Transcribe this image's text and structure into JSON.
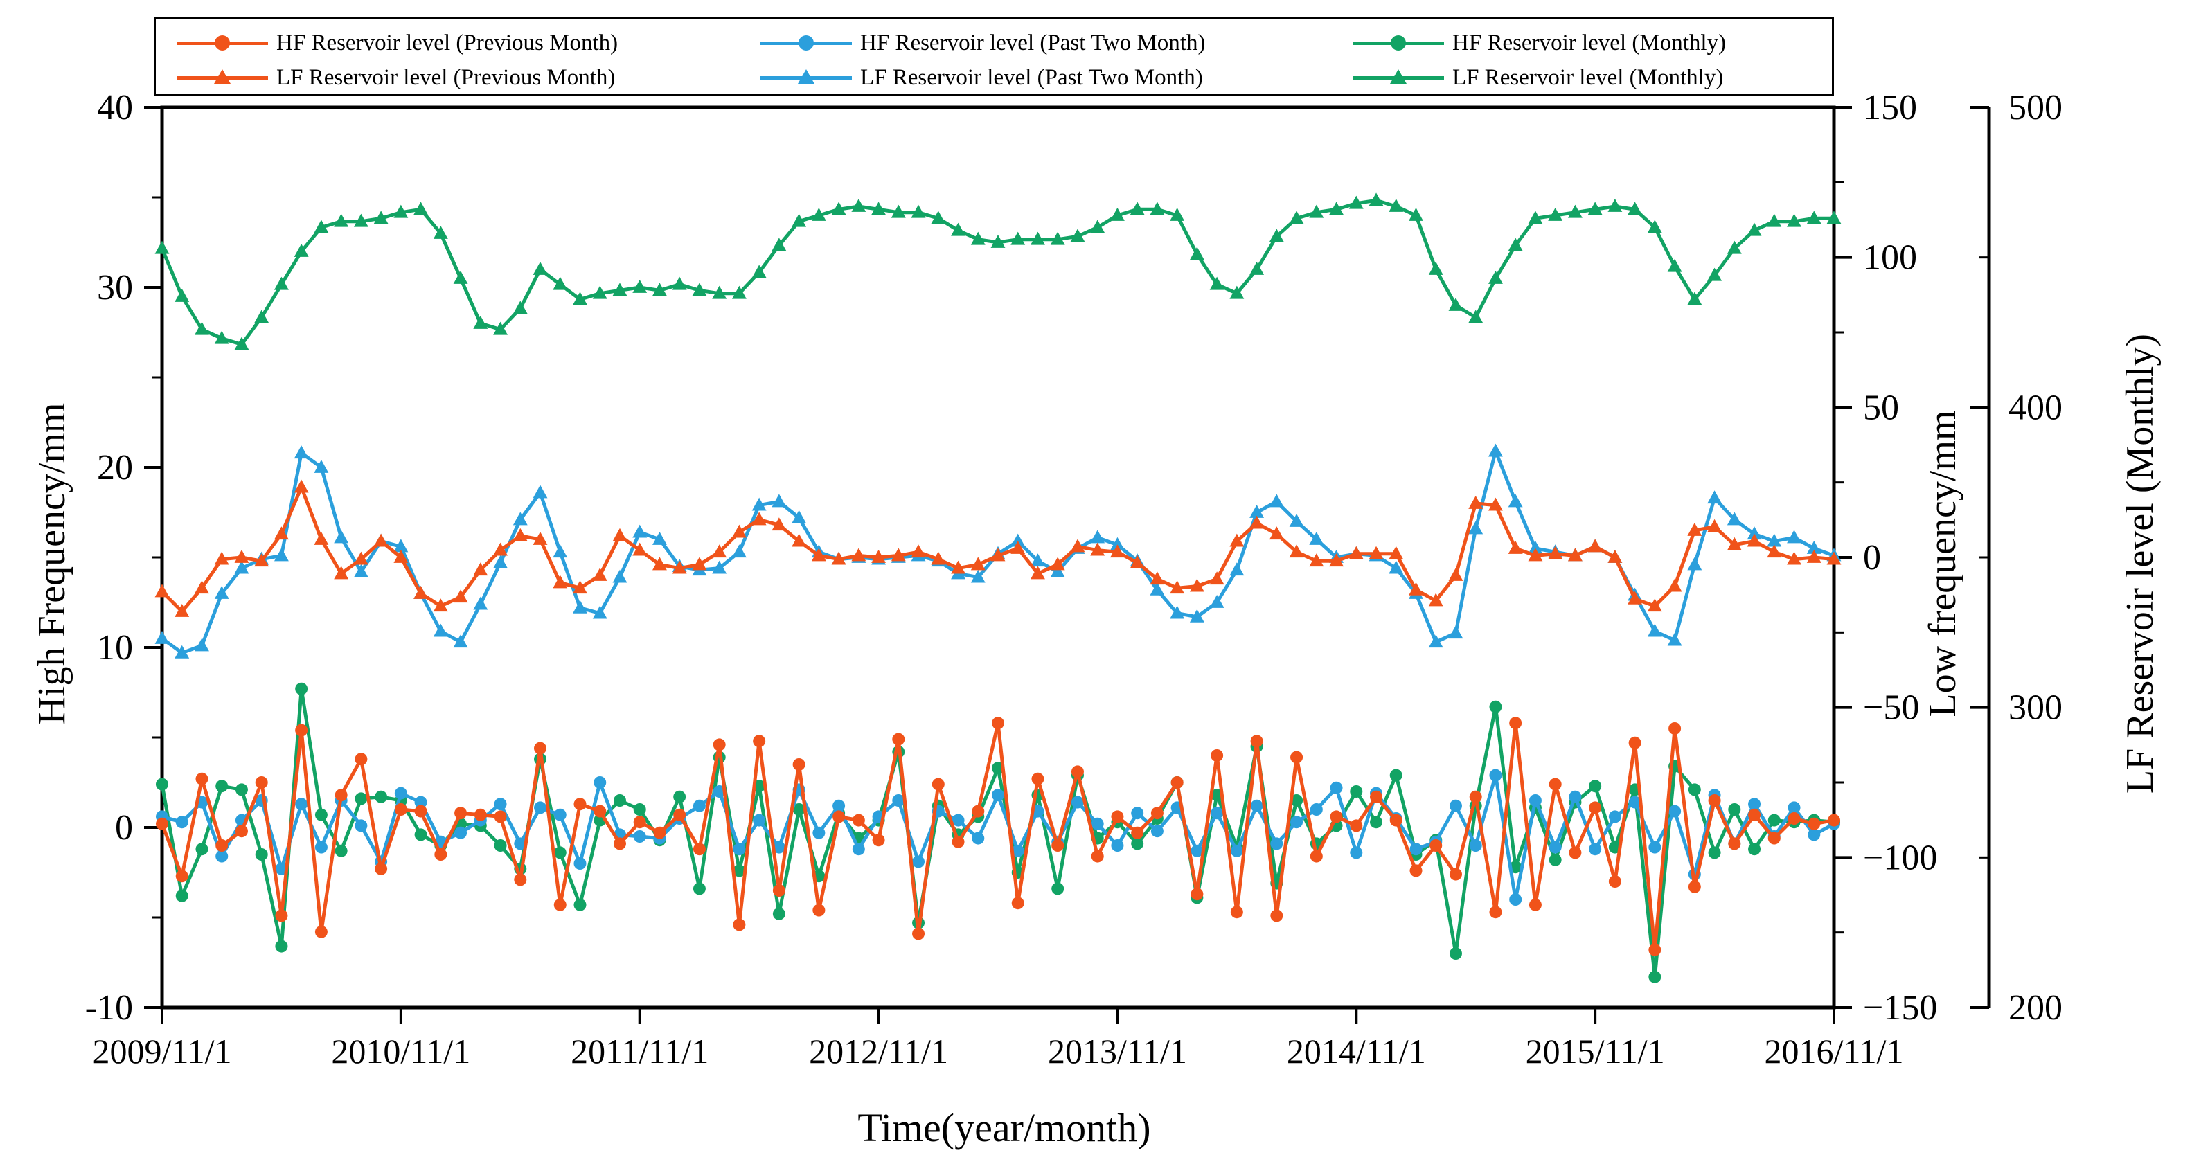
{
  "figure": {
    "kind": "multi-axis seasonal time-series chart",
    "background": "#ffffff",
    "frame_color": "#000000"
  },
  "colors": {
    "orange": "#F0531A",
    "blue": "#2B9FDC",
    "green": "#12A364",
    "axis": "#000000"
  },
  "legend": {
    "items": [
      {
        "label": "HF Reservoir level (Previous Month)",
        "color": "#F0531A",
        "marker": "circle"
      },
      {
        "label": "HF Reservoir level (Past Two Month)",
        "color": "#2B9FDC",
        "marker": "circle"
      },
      {
        "label": "HF Reservoir level (Monthly)",
        "color": "#12A364",
        "marker": "circle"
      },
      {
        "label": "LF Reservoir level (Previous Month)",
        "color": "#F0531A",
        "marker": "triangle"
      },
      {
        "label": "LF Reservoir level (Past Two Month)",
        "color": "#2B9FDC",
        "marker": "triangle"
      },
      {
        "label": "LF Reservoir level (Monthly)",
        "color": "#12A364",
        "marker": "triangle"
      }
    ]
  },
  "axes": {
    "x": {
      "title": "Time(year/month)",
      "ticks": [
        "2009/11/1",
        "2010/11/1",
        "2011/11/1",
        "2012/11/1",
        "2013/11/1",
        "2014/11/1",
        "2015/11/1",
        "2016/11/1"
      ]
    },
    "left": {
      "title": "High Frequency/mm",
      "range": [
        -10,
        40
      ],
      "ticks": [
        40,
        30,
        20,
        10,
        0,
        -10
      ],
      "minor_step": 5
    },
    "right1": {
      "title": "Low frequency/mm",
      "range": [
        -150,
        150
      ],
      "ticks": [
        150,
        100,
        50,
        0,
        -50,
        -100,
        -150
      ],
      "minor_step": 25
    },
    "right2": {
      "title": "LF Reservoir level (Monthly)",
      "range": [
        200,
        500
      ],
      "ticks": [
        500,
        400,
        300,
        200
      ],
      "minor_step": 50
    }
  },
  "chart_data": {
    "type": "line",
    "title": "",
    "xlabel": "Time(year/month)",
    "x_months": [
      "2009/11",
      "2009/12",
      "2010/1",
      "2010/2",
      "2010/3",
      "2010/4",
      "2010/5",
      "2010/6",
      "2010/7",
      "2010/8",
      "2010/9",
      "2010/10",
      "2010/11",
      "2010/12",
      "2011/1",
      "2011/2",
      "2011/3",
      "2011/4",
      "2011/5",
      "2011/6",
      "2011/7",
      "2011/8",
      "2011/9",
      "2011/10",
      "2011/11",
      "2011/12",
      "2012/1",
      "2012/2",
      "2012/3",
      "2012/4",
      "2012/5",
      "2012/6",
      "2012/7",
      "2012/8",
      "2012/9",
      "2012/10",
      "2012/11",
      "2012/12",
      "2013/1",
      "2013/2",
      "2013/3",
      "2013/4",
      "2013/5",
      "2013/6",
      "2013/7",
      "2013/8",
      "2013/9",
      "2013/10",
      "2013/11",
      "2013/12",
      "2014/1",
      "2014/2",
      "2014/3",
      "2014/4",
      "2014/5",
      "2014/6",
      "2014/7",
      "2014/8",
      "2014/9",
      "2014/10",
      "2014/11",
      "2014/12",
      "2015/1",
      "2015/2",
      "2015/3",
      "2015/4",
      "2015/5",
      "2015/6",
      "2015/7",
      "2015/8",
      "2015/9",
      "2015/10",
      "2015/11",
      "2015/12",
      "2016/1",
      "2016/2",
      "2016/3",
      "2016/4",
      "2016/5",
      "2016/6",
      "2016/7",
      "2016/8",
      "2016/9",
      "2016/10",
      "2016/11"
    ],
    "series": [
      {
        "id": "lf_monthly",
        "name": "LF Reservoir level (Monthly)",
        "axis": "right2",
        "color": "#12A364",
        "marker": "triangle",
        "values": [
          453,
          437,
          426,
          423,
          421,
          430,
          441,
          452,
          460,
          462,
          462,
          463,
          465,
          466,
          458,
          443,
          428,
          426,
          433,
          446,
          441,
          436,
          438,
          439,
          440,
          439,
          441,
          439,
          438,
          438,
          445,
          454,
          462,
          464,
          466,
          467,
          466,
          465,
          465,
          463,
          459,
          456,
          455,
          456,
          456,
          456,
          457,
          460,
          464,
          466,
          466,
          464,
          451,
          441,
          438,
          446,
          457,
          463,
          465,
          466,
          468,
          469,
          467,
          464,
          446,
          434,
          430,
          443,
          454,
          463,
          464,
          465,
          466,
          467,
          466,
          460,
          447,
          436,
          444,
          453,
          459,
          462,
          462,
          463,
          463
        ]
      },
      {
        "id": "lf_past2",
        "name": "LF Reservoir level (Past Two Month)",
        "axis": "right1",
        "color": "#2B9FDC",
        "marker": "triangle",
        "values": [
          -27,
          -31.8,
          -29.4,
          -12,
          -3.6,
          -0.6,
          0.6,
          34.8,
          30,
          6.6,
          -4.8,
          5.4,
          3.6,
          -12,
          -24.6,
          -28.2,
          -15.6,
          -1.8,
          12.6,
          21.6,
          1.8,
          -16.8,
          -18.6,
          -6.6,
          8.4,
          6,
          -3,
          -4.2,
          -3.6,
          1.8,
          17.4,
          18.6,
          13.2,
          1.8,
          -0.6,
          0,
          -0.6,
          0,
          0.6,
          -1.2,
          -5.4,
          -6.6,
          1.2,
          5.4,
          -1.2,
          -4.8,
          3,
          6.6,
          4.2,
          -1.2,
          -10.8,
          -18.6,
          -19.8,
          -15,
          -4.2,
          15,
          18.6,
          12,
          6,
          0,
          1.2,
          0.6,
          -3.6,
          -12,
          -28.2,
          -25.2,
          9.6,
          35.4,
          18.6,
          3,
          1.8,
          0.6,
          3.6,
          0,
          -12.6,
          -24.6,
          -27.6,
          -2.4,
          19.8,
          12.6,
          7.8,
          5.4,
          6.6,
          3,
          0.6
        ]
      },
      {
        "id": "lf_prev",
        "name": "LF Reservoir level (Previous Month)",
        "axis": "right1",
        "color": "#F0531A",
        "marker": "triangle",
        "values": [
          -11.4,
          -18,
          -10.2,
          -0.6,
          0,
          -1.2,
          7.8,
          23.4,
          6,
          -5.4,
          -0.6,
          5.4,
          0,
          -12,
          -16.2,
          -13.2,
          -4.2,
          2.4,
          7.2,
          6,
          -8.4,
          -10.2,
          -6,
          7.2,
          2.4,
          -2.4,
          -3.6,
          -2.4,
          1.8,
          8.4,
          12.6,
          10.8,
          5.4,
          0.6,
          -0.6,
          0.6,
          0,
          0.6,
          1.8,
          -0.6,
          -3.6,
          -2.4,
          0.6,
          3,
          -5.4,
          -2.4,
          3.6,
          2.4,
          1.8,
          -1.8,
          -7.2,
          -10.2,
          -9.6,
          -7.2,
          5.4,
          11.4,
          7.8,
          1.8,
          -1.2,
          -1.2,
          1.2,
          1.2,
          1.2,
          -10.8,
          -14.4,
          -6,
          18,
          17.4,
          3,
          0.6,
          1.2,
          0.6,
          3.6,
          0,
          -13.8,
          -16.2,
          -9.6,
          9,
          10.2,
          4.2,
          5.4,
          1.8,
          -0.6,
          0,
          -0.6
        ]
      },
      {
        "id": "hf_monthly",
        "name": "HF Reservoir level (Monthly)",
        "axis": "left",
        "color": "#12A364",
        "marker": "circle",
        "values": [
          2.4,
          -3.8,
          -1.2,
          2.3,
          2.1,
          -1.5,
          -6.6,
          7.7,
          0.7,
          -1.3,
          1.6,
          1.7,
          1.5,
          -0.4,
          -1,
          0.2,
          0.1,
          -1,
          -2.3,
          3.8,
          -1.4,
          -4.3,
          0.4,
          1.5,
          1,
          -0.7,
          1.7,
          -3.4,
          3.9,
          -2.4,
          2.3,
          -4.8,
          1,
          -2.7,
          0.8,
          -0.6,
          0.4,
          4.2,
          -5.3,
          1.2,
          -0.4,
          0.6,
          3.3,
          -2.5,
          1.8,
          -3.4,
          2.9,
          -0.6,
          0.3,
          -0.9,
          0.5,
          2.5,
          -3.9,
          1.8,
          -1.1,
          4.5,
          -3.1,
          1.5,
          -0.9,
          0.1,
          2,
          0.3,
          2.9,
          -1.5,
          -0.7,
          -7,
          1.2,
          6.7,
          -2.2,
          1.1,
          -1.8,
          1.4,
          2.3,
          -1.1,
          2.1,
          -8.3,
          3.4,
          2.1,
          -1.4,
          1,
          -1.2,
          0.4,
          0.3,
          0.4,
          0.3
        ]
      },
      {
        "id": "hf_past2",
        "name": "HF Reservoir level (Past Two Month)",
        "axis": "left",
        "color": "#2B9FDC",
        "marker": "circle",
        "values": [
          0.6,
          0.3,
          1.4,
          -1.6,
          0.4,
          1.5,
          -2.3,
          1.3,
          -1.1,
          1.5,
          0.1,
          -1.9,
          1.9,
          1.4,
          -0.8,
          -0.3,
          0.4,
          1.3,
          -0.9,
          1.1,
          0.7,
          -2,
          2.5,
          -0.4,
          -0.5,
          -0.6,
          0.5,
          1.2,
          2,
          -1.2,
          0.4,
          -1.1,
          2.1,
          -0.3,
          1.2,
          -1.2,
          0.6,
          1.5,
          -1.9,
          0.9,
          0.4,
          -0.6,
          1.8,
          -1.3,
          0.9,
          -0.8,
          1.4,
          0.2,
          -1,
          0.8,
          -0.2,
          1.1,
          -1.3,
          0.8,
          -1.3,
          1.2,
          -0.9,
          0.3,
          1,
          2.2,
          -1.4,
          1.9,
          0.5,
          -1.2,
          -0.8,
          1.2,
          -1,
          2.9,
          -4,
          1.5,
          -1.1,
          1.7,
          -1.2,
          0.6,
          1.4,
          -1.1,
          0.9,
          -2.6,
          1.8,
          -0.9,
          1.3,
          -0.5,
          1.1,
          -0.4,
          0.2
        ]
      },
      {
        "id": "hf_prev",
        "name": "HF Reservoir level (Previous Month)",
        "axis": "left",
        "color": "#F0531A",
        "marker": "circle",
        "values": [
          0.2,
          -2.7,
          2.7,
          -1,
          -0.2,
          2.5,
          -4.9,
          5.4,
          -5.8,
          1.8,
          3.8,
          -2.3,
          1,
          0.9,
          -1.5,
          0.8,
          0.7,
          0.6,
          -2.9,
          4.4,
          -4.3,
          1.3,
          0.9,
          -0.9,
          0.3,
          -0.3,
          0.7,
          -1.2,
          4.6,
          -5.4,
          4.8,
          -3.5,
          3.5,
          -4.6,
          0.6,
          0.4,
          -0.7,
          4.9,
          -5.9,
          2.4,
          -0.8,
          0.9,
          5.8,
          -4.2,
          2.7,
          -1,
          3.1,
          -1.6,
          0.6,
          -0.3,
          0.8,
          2.5,
          -3.7,
          4,
          -4.7,
          4.8,
          -4.9,
          3.9,
          -1.6,
          0.6,
          0.1,
          1.7,
          0.4,
          -2.4,
          -1,
          -2.6,
          1.7,
          -4.7,
          5.8,
          -4.3,
          2.4,
          -1.4,
          1.1,
          -3,
          4.7,
          -6.8,
          5.5,
          -3.3,
          1.5,
          -0.9,
          0.7,
          -0.6,
          0.5,
          0.2,
          0.4
        ]
      }
    ],
    "layout": {
      "grid": false,
      "legend_position": "top",
      "x_major_every_months": 12
    }
  }
}
